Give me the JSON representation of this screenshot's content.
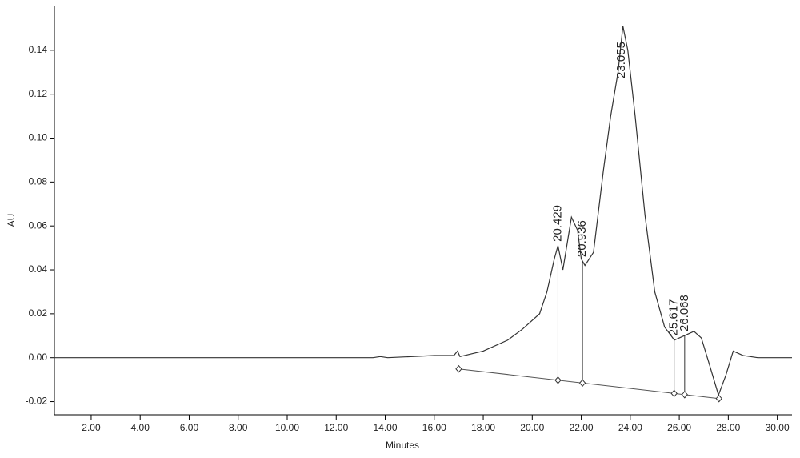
{
  "chart_data": {
    "type": "line",
    "x_label": "Minutes",
    "y_label": "AU",
    "xlim": [
      0.5,
      30.6
    ],
    "ylim": [
      -0.026,
      0.16
    ],
    "xticks": [
      {
        "value": 2,
        "label": "2.00"
      },
      {
        "value": 4,
        "label": "4.00"
      },
      {
        "value": 6,
        "label": "6.00"
      },
      {
        "value": 8,
        "label": "8.00"
      },
      {
        "value": 10,
        "label": "10.00"
      },
      {
        "value": 12,
        "label": "12.00"
      },
      {
        "value": 14,
        "label": "14.00"
      },
      {
        "value": 16,
        "label": "16.00"
      },
      {
        "value": 18,
        "label": "18.00"
      },
      {
        "value": 20,
        "label": "20.00"
      },
      {
        "value": 22,
        "label": "22.00"
      },
      {
        "value": 24,
        "label": "24.00"
      },
      {
        "value": 26,
        "label": "26.00"
      },
      {
        "value": 28,
        "label": "28.00"
      },
      {
        "value": 30,
        "label": "30.00"
      }
    ],
    "yticks": [
      {
        "value": -0.02,
        "label": "-0.02"
      },
      {
        "value": 0,
        "label": "0.00"
      },
      {
        "value": 0.02,
        "label": "0.02"
      },
      {
        "value": 0.04,
        "label": "0.04"
      },
      {
        "value": 0.06,
        "label": "0.06"
      },
      {
        "value": 0.08,
        "label": "0.08"
      },
      {
        "value": 0.1,
        "label": "0.10"
      },
      {
        "value": 0.12,
        "label": "0.12"
      },
      {
        "value": 0.14,
        "label": "0.14"
      }
    ],
    "series": [
      {
        "color": "#333333",
        "x": [
          0.5,
          5,
          10,
          13.5,
          13.8,
          14.1,
          16,
          16.8,
          16.95,
          17.05,
          18,
          19,
          19.6,
          19.9,
          20.3,
          20.6,
          20.9,
          21.05,
          21.25,
          21.6,
          21.85,
          22.0,
          22.15,
          22.5,
          22.9,
          23.2,
          23.5,
          23.7,
          23.9,
          24.2,
          24.6,
          25.0,
          25.4,
          25.8,
          26.2,
          26.6,
          26.9,
          27.2,
          27.6,
          27.9,
          28.2,
          28.6,
          29.2,
          30.6
        ],
        "values": [
          0,
          0,
          0,
          0,
          0.0005,
          0,
          0.001,
          0.001,
          0.003,
          0.0005,
          0.003,
          0.008,
          0.013,
          0.016,
          0.02,
          0.03,
          0.045,
          0.051,
          0.04,
          0.064,
          0.058,
          0.045,
          0.042,
          0.048,
          0.085,
          0.11,
          0.13,
          0.151,
          0.14,
          0.11,
          0.065,
          0.03,
          0.014,
          0.008,
          0.01,
          0.012,
          0.009,
          -0.002,
          -0.017,
          -0.008,
          0.003,
          0.001,
          0,
          0
        ]
      }
    ],
    "baseline": {
      "x": [
        17.0,
        27.62
      ],
      "values": [
        -0.0051,
        -0.0186
      ],
      "color": "#555555"
    },
    "peaks": [
      {
        "label": "20.429",
        "x": 21.05,
        "drop_line": true
      },
      {
        "label": "20.936",
        "x": 22.05,
        "drop_line": true
      },
      {
        "label": "23.055",
        "x": 23.64,
        "drop_line": false
      },
      {
        "label": "25.617",
        "x": 25.79,
        "drop_line": true
      },
      {
        "label": "26.068",
        "x": 26.22,
        "drop_line": true
      }
    ]
  }
}
